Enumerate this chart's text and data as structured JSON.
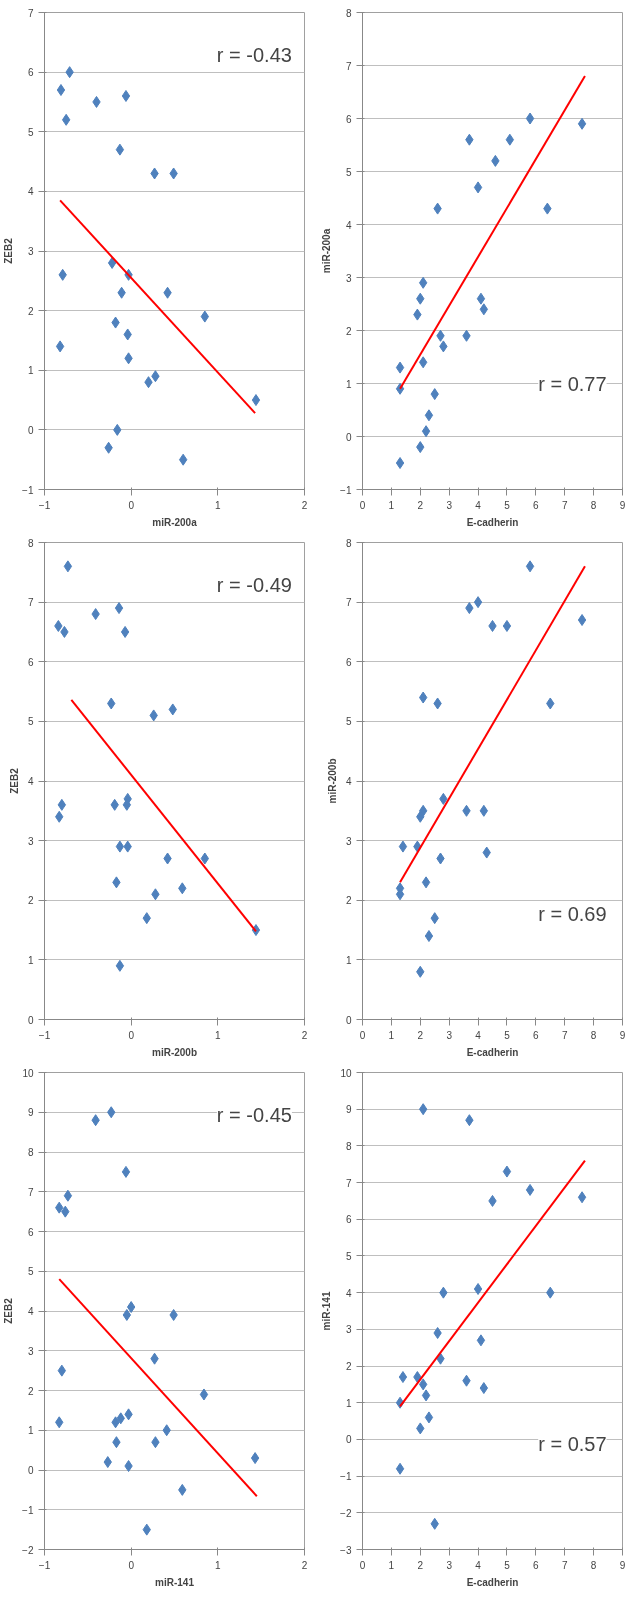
{
  "chart_data": [
    {
      "type": "scatter",
      "xlabel": "miR-200a",
      "ylabel": "ZEB2",
      "xlim": [
        -1,
        2
      ],
      "xticks": [
        -1,
        0,
        1,
        2
      ],
      "ylim": [
        -1,
        7
      ],
      "yticks": [
        -1,
        0,
        1,
        2,
        3,
        4,
        5,
        6,
        7
      ],
      "grid": "y",
      "annotations": [
        "r = -0.43"
      ],
      "series": [
        {
          "marker": "diamond",
          "color": "#4f81bd",
          "x": [
            -0.71,
            -0.81,
            -0.75,
            -0.06,
            -0.4,
            -0.13,
            0.49,
            0.27,
            -0.79,
            -0.82,
            -0.22,
            -0.03,
            -0.11,
            0.42,
            -0.18,
            -0.04,
            -0.03,
            0.85,
            0.28,
            0.2,
            1.44,
            -0.16,
            -0.26,
            0.6
          ],
          "values": [
            6.0,
            5.7,
            5.2,
            5.6,
            5.5,
            4.7,
            4.3,
            4.3,
            2.6,
            1.4,
            2.8,
            2.6,
            2.3,
            2.3,
            1.8,
            1.6,
            1.2,
            1.9,
            0.9,
            0.8,
            0.5,
            0.0,
            -0.3,
            -0.5
          ]
        },
        {
          "type": "line",
          "color": "#ff0000",
          "x": [
            -0.82,
            1.43
          ],
          "values": [
            3.85,
            0.28
          ]
        }
      ]
    },
    {
      "type": "scatter",
      "xlabel": "miR-200b",
      "ylabel": "ZEB2",
      "xlim": [
        -1,
        2
      ],
      "xticks": [
        -1,
        0,
        1,
        2
      ],
      "ylim": [
        0,
        8
      ],
      "yticks": [
        0,
        1,
        2,
        3,
        4,
        5,
        6,
        7,
        8
      ],
      "grid": "y",
      "annotations": [
        "r = -0.49"
      ],
      "series": [
        {
          "marker": "diamond",
          "color": "#4f81bd",
          "x": [
            -0.73,
            -0.84,
            -0.77,
            -0.41,
            -0.14,
            -0.07,
            -0.23,
            -0.8,
            -0.83,
            0.48,
            0.26,
            -0.04,
            -0.05,
            -0.19,
            -0.04,
            -0.13,
            -0.17,
            0.42,
            0.85,
            0.59,
            0.28,
            0.18,
            -0.13,
            1.44
          ],
          "values": [
            7.6,
            6.6,
            6.5,
            6.8,
            6.9,
            6.5,
            5.3,
            3.6,
            3.4,
            5.2,
            5.1,
            3.7,
            3.6,
            3.6,
            2.9,
            2.9,
            2.3,
            2.7,
            2.7,
            2.2,
            2.1,
            1.7,
            0.9,
            1.5
          ]
        },
        {
          "type": "line",
          "color": "#ff0000",
          "x": [
            -0.69,
            1.44
          ],
          "values": [
            5.36,
            1.48
          ]
        }
      ]
    },
    {
      "type": "scatter",
      "xlabel": "miR-141",
      "ylabel": "ZEB2",
      "xlim": [
        -1,
        2
      ],
      "xticks": [
        -1,
        0,
        1,
        2
      ],
      "ylim": [
        -2,
        10
      ],
      "yticks": [
        -2,
        -1,
        0,
        1,
        2,
        3,
        4,
        5,
        6,
        7,
        8,
        9,
        10
      ],
      "grid": "y",
      "annotations": [
        "r = -0.45"
      ],
      "series": [
        {
          "marker": "diamond",
          "color": "#4f81bd",
          "x": [
            -0.23,
            -0.41,
            -0.06,
            -0.73,
            -0.76,
            -0.83,
            -0.8,
            -0.83,
            0.0,
            -0.05,
            0.49,
            0.27,
            -0.03,
            -0.12,
            -0.18,
            -0.17,
            -0.27,
            -0.03,
            0.41,
            0.28,
            0.84,
            1.43,
            0.18,
            0.59
          ],
          "values": [
            9.0,
            8.8,
            7.5,
            6.9,
            6.5,
            6.6,
            2.5,
            1.2,
            4.1,
            3.9,
            3.9,
            2.8,
            1.4,
            1.3,
            1.2,
            0.7,
            0.2,
            0.1,
            1.0,
            0.7,
            1.9,
            0.3,
            -1.5,
            -0.5
          ]
        },
        {
          "type": "line",
          "color": "#ff0000",
          "x": [
            -0.83,
            1.45
          ],
          "values": [
            4.8,
            -0.66
          ]
        }
      ]
    },
    {
      "type": "scatter",
      "xlabel": "E-cadherin",
      "ylabel": "miR-200a",
      "xlim": [
        0,
        9
      ],
      "xticks": [
        0,
        1,
        2,
        3,
        4,
        5,
        6,
        7,
        8,
        9
      ],
      "ylim": [
        -1,
        8
      ],
      "yticks": [
        -1,
        0,
        1,
        2,
        3,
        4,
        5,
        6,
        7,
        8
      ],
      "grid": "y",
      "annotations": [
        "r = 0.77"
      ],
      "series": [
        {
          "marker": "diamond",
          "color": "#4f81bd",
          "x": [
            7.6,
            5.8,
            5.1,
            4.6,
            3.7,
            4.0,
            6.4,
            2.6,
            4.1,
            4.2,
            3.6,
            2.1,
            2.0,
            1.9,
            2.7,
            2.8,
            2.1,
            1.3,
            1.3,
            2.5,
            2.3,
            2.2,
            2.0,
            1.3
          ],
          "values": [
            5.9,
            6.0,
            5.6,
            5.2,
            5.6,
            4.7,
            4.3,
            4.3,
            2.6,
            2.4,
            1.9,
            2.9,
            2.6,
            2.3,
            1.9,
            1.7,
            1.4,
            1.3,
            0.9,
            0.8,
            0.4,
            0.1,
            -0.2,
            -0.5
          ]
        },
        {
          "type": "line",
          "color": "#ff0000",
          "x": [
            1.3,
            7.7
          ],
          "values": [
            0.9,
            6.8
          ]
        }
      ]
    },
    {
      "type": "scatter",
      "xlabel": "E-cadherin",
      "ylabel": "miR-200b",
      "xlim": [
        0,
        9
      ],
      "xticks": [
        0,
        1,
        2,
        3,
        4,
        5,
        6,
        7,
        8,
        9
      ],
      "ylim": [
        0,
        8
      ],
      "yticks": [
        0,
        1,
        2,
        3,
        4,
        5,
        6,
        7,
        8
      ],
      "grid": "y",
      "annotations": [
        "r = 0.69"
      ],
      "series": [
        {
          "marker": "diamond",
          "color": "#4f81bd",
          "x": [
            5.8,
            7.6,
            5.0,
            4.5,
            4.0,
            3.7,
            6.5,
            2.6,
            2.1,
            4.2,
            3.6,
            2.8,
            2.1,
            2.0,
            4.3,
            2.7,
            1.9,
            1.4,
            1.3,
            1.3,
            2.5,
            2.3,
            2.2,
            2.0
          ],
          "values": [
            7.6,
            6.7,
            6.6,
            6.6,
            7.0,
            6.9,
            5.3,
            5.3,
            5.4,
            3.5,
            3.5,
            3.7,
            3.5,
            3.4,
            2.8,
            2.7,
            2.9,
            2.9,
            2.2,
            2.1,
            1.7,
            1.4,
            2.3,
            0.8
          ]
        },
        {
          "type": "line",
          "color": "#ff0000",
          "x": [
            1.3,
            7.7
          ],
          "values": [
            2.3,
            7.6
          ]
        }
      ]
    },
    {
      "type": "scatter",
      "xlabel": "E-cadherin",
      "ylabel": "miR-141",
      "xlim": [
        0,
        9
      ],
      "xticks": [
        0,
        1,
        2,
        3,
        4,
        5,
        6,
        7,
        8,
        9
      ],
      "ylim": [
        -3,
        10
      ],
      "yticks": [
        -3,
        -2,
        -1,
        0,
        1,
        2,
        3,
        4,
        5,
        6,
        7,
        8,
        9,
        10
      ],
      "grid": "y",
      "annotations": [
        "r = 0.57"
      ],
      "series": [
        {
          "marker": "diamond",
          "color": "#4f81bd",
          "x": [
            2.1,
            3.7,
            5.0,
            5.8,
            7.6,
            4.5,
            6.5,
            4.0,
            2.8,
            2.6,
            4.1,
            2.7,
            3.6,
            4.2,
            1.9,
            2.1,
            2.2,
            1.4,
            1.3,
            2.3,
            2.0,
            1.3,
            2.5
          ],
          "values": [
            9.0,
            8.7,
            7.3,
            6.8,
            6.6,
            6.5,
            4.0,
            4.1,
            4.0,
            2.9,
            2.7,
            2.2,
            1.6,
            1.4,
            1.7,
            1.5,
            1.2,
            1.7,
            1.0,
            0.6,
            0.3,
            -0.8,
            -2.3
          ]
        },
        {
          "type": "line",
          "color": "#ff0000",
          "x": [
            1.3,
            7.7
          ],
          "values": [
            0.9,
            7.6
          ]
        }
      ]
    }
  ]
}
